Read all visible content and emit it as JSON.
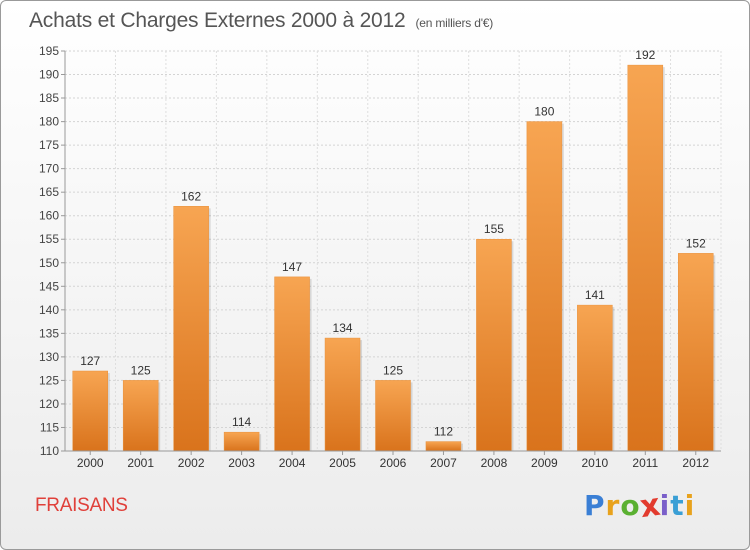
{
  "title": "Achats et Charges Externes 2000 à 2012",
  "subtitle": "(en milliers d'€)",
  "place": "FRAISANS",
  "logo": {
    "letters": [
      "P",
      "r",
      "o",
      "x",
      "i",
      "t",
      "i"
    ],
    "colors": [
      "#3a7fd5",
      "#e8a21c",
      "#5ab031",
      "#e23b2e",
      "#7a5fc9",
      "#3a9fd5",
      "#e8a21c"
    ]
  },
  "chart_data": {
    "type": "bar",
    "title": "Achats et Charges Externes 2000 à 2012",
    "subtitle": "(en milliers d'€)",
    "categories": [
      "2000",
      "2001",
      "2002",
      "2003",
      "2004",
      "2005",
      "2006",
      "2007",
      "2008",
      "2009",
      "2010",
      "2011",
      "2012"
    ],
    "values": [
      127,
      125,
      162,
      114,
      147,
      134,
      125,
      112,
      155,
      180,
      141,
      192,
      152
    ],
    "ylim": [
      110,
      195
    ],
    "yticks": [
      110,
      115,
      120,
      125,
      130,
      135,
      140,
      145,
      150,
      155,
      160,
      165,
      170,
      175,
      180,
      185,
      190,
      195
    ],
    "grid": true,
    "bar_color": "#f0963e"
  }
}
